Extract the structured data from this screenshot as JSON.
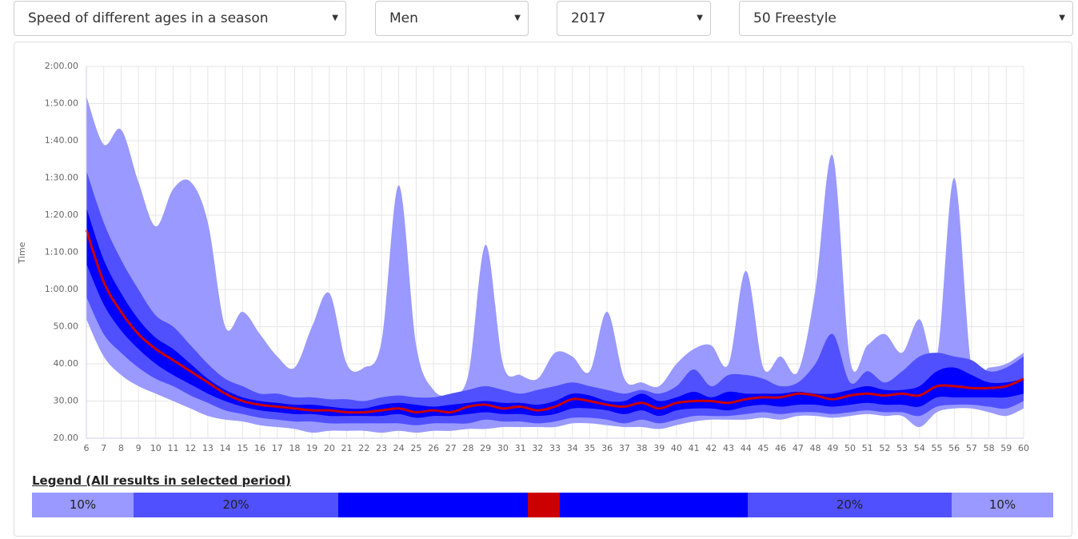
{
  "controls": [
    {
      "label": "Speed of different ages in a season"
    },
    {
      "label": "Men"
    },
    {
      "label": "2017"
    },
    {
      "label": "50 Freestyle"
    }
  ],
  "chart_data": {
    "type": "area",
    "y_label": "Time",
    "x": [
      6,
      7,
      8,
      9,
      10,
      11,
      12,
      13,
      14,
      15,
      16,
      17,
      18,
      19,
      20,
      21,
      22,
      23,
      24,
      25,
      26,
      27,
      28,
      29,
      30,
      31,
      32,
      33,
      34,
      35,
      36,
      37,
      38,
      39,
      40,
      41,
      42,
      43,
      44,
      45,
      46,
      47,
      48,
      49,
      50,
      51,
      52,
      53,
      54,
      55,
      56,
      57,
      58,
      59,
      60
    ],
    "xlim": [
      6,
      60
    ],
    "xticks": [
      6,
      7,
      8,
      9,
      10,
      11,
      12,
      13,
      14,
      15,
      16,
      17,
      18,
      19,
      20,
      21,
      22,
      23,
      24,
      25,
      26,
      27,
      28,
      29,
      30,
      31,
      32,
      33,
      34,
      35,
      36,
      37,
      38,
      39,
      40,
      41,
      42,
      43,
      44,
      45,
      46,
      47,
      48,
      49,
      50,
      51,
      52,
      53,
      54,
      55,
      56,
      57,
      58,
      59,
      60
    ],
    "ylim": [
      20,
      120
    ],
    "yticks": [
      {
        "value": 20,
        "label": "20.00"
      },
      {
        "value": 30,
        "label": "30.00"
      },
      {
        "value": 40,
        "label": "40.00"
      },
      {
        "value": 50,
        "label": "50.00"
      },
      {
        "value": 60,
        "label": "1:00.00"
      },
      {
        "value": 70,
        "label": "1:10.00"
      },
      {
        "value": 80,
        "label": "1:20.00"
      },
      {
        "value": 90,
        "label": "1:30.00"
      },
      {
        "value": 100,
        "label": "1:40.00"
      },
      {
        "value": 110,
        "label": "1:50.00"
      },
      {
        "value": 120,
        "label": "2:00.00"
      }
    ],
    "grid": true,
    "series": [
      {
        "color": "#9999ff",
        "values": [
          52,
          42,
          37,
          34,
          32,
          30,
          28,
          26,
          25,
          24.5,
          23.5,
          23,
          22.5,
          21.5,
          22,
          22,
          22,
          21.5,
          22,
          21.5,
          22,
          22,
          22.5,
          22.5,
          23,
          23,
          23,
          23,
          24,
          24,
          23.5,
          23,
          23,
          22.5,
          23.5,
          24.5,
          25,
          25,
          25,
          25.5,
          25,
          26,
          26,
          25.5,
          26,
          26.5,
          26,
          26,
          23,
          27,
          28,
          28,
          27,
          26,
          28
        ]
      },
      {
        "color": "#5050ff",
        "values": [
          58,
          48,
          43,
          39,
          36,
          34,
          31.5,
          29.5,
          27.5,
          26.5,
          25.5,
          25,
          24.5,
          24.5,
          24,
          24,
          24,
          24,
          24,
          23.5,
          24,
          24,
          24,
          25,
          24.5,
          24.5,
          24,
          24.5,
          25.5,
          25.5,
          25,
          24,
          25,
          24,
          25,
          26,
          26,
          26,
          26.5,
          27,
          26.5,
          27,
          27,
          26.5,
          27,
          27.5,
          27,
          27,
          26,
          28.5,
          29,
          29,
          28.5,
          28,
          30
        ]
      },
      {
        "color": "#0000ff",
        "values": [
          67,
          56,
          49,
          44,
          40,
          37,
          34.5,
          32,
          30,
          28.5,
          27.5,
          27,
          26.5,
          26.5,
          26,
          26,
          26,
          26,
          26.5,
          25.5,
          26,
          26,
          26.5,
          27,
          26.5,
          26.5,
          26,
          26.5,
          28,
          28,
          27.5,
          26.5,
          27.5,
          26,
          27.5,
          28,
          28,
          27.5,
          28.5,
          29,
          28.5,
          29,
          29,
          28.5,
          29,
          29.5,
          29,
          29,
          28.5,
          31,
          31,
          31,
          31,
          31,
          32
        ]
      },
      {
        "color": "#cc0000",
        "values": [
          76,
          62,
          54,
          48,
          44,
          41,
          38,
          35,
          32,
          30,
          29,
          28.5,
          28,
          27.5,
          27.5,
          27,
          27,
          27.5,
          28,
          27,
          27.5,
          27,
          28.5,
          29,
          28,
          28.5,
          27.5,
          28.5,
          30.5,
          30,
          29,
          28.5,
          29.5,
          28,
          29.5,
          30,
          30,
          29.5,
          30.5,
          31,
          31,
          32,
          31.5,
          30.5,
          31.5,
          32,
          31.5,
          32,
          31.5,
          34,
          34,
          33.5,
          33.5,
          34,
          36
        ]
      },
      {
        "color": "#0000ff",
        "values": [
          82,
          68,
          59,
          52,
          47,
          44,
          40,
          36,
          33,
          31,
          30,
          29.5,
          29,
          29,
          28.5,
          28,
          28,
          29,
          29.5,
          29,
          28.5,
          29,
          29.5,
          30,
          29.5,
          29.5,
          29,
          30,
          32,
          31.5,
          30,
          30,
          32,
          30,
          31,
          32.5,
          31,
          32.5,
          32,
          32,
          32,
          32.5,
          32,
          32,
          33,
          34,
          33,
          33,
          34,
          38,
          39,
          37,
          35,
          35,
          36
        ]
      },
      {
        "color": "#5050ff",
        "values": [
          92,
          78,
          68,
          60,
          53,
          50,
          45,
          40,
          36,
          34,
          32,
          32,
          31,
          31,
          30.5,
          30.5,
          30,
          31,
          31.5,
          31,
          31,
          32,
          33,
          34,
          33,
          32,
          33,
          34,
          35,
          34,
          33,
          32,
          33,
          32,
          34,
          38.5,
          34,
          37,
          37,
          36,
          34,
          35,
          40,
          48,
          35,
          38,
          35,
          38,
          42,
          43,
          42,
          41,
          38,
          39,
          42
        ]
      },
      {
        "color": "#9999ff",
        "values": [
          112,
          99,
          103,
          89,
          77,
          87,
          89,
          78,
          50,
          54,
          48,
          42,
          39,
          50,
          59,
          40,
          39,
          46,
          88,
          45,
          33,
          32,
          37,
          72,
          40,
          37,
          36,
          43,
          42,
          38,
          54,
          36,
          35,
          34,
          40,
          44,
          45,
          40,
          65,
          39,
          42,
          38,
          60,
          96,
          41,
          45,
          48,
          43,
          52,
          42,
          90,
          39,
          39,
          40,
          43
        ]
      }
    ],
    "legend": {
      "title": "Legend (All results in selected period)",
      "items": [
        {
          "label": "10%",
          "color": "#9999ff"
        },
        {
          "label": "20%",
          "color": "#5050ff"
        },
        {
          "color": "#0000ff"
        },
        {
          "color": "#cc0000"
        },
        {
          "color": "#0000ff"
        },
        {
          "label": "20%",
          "color": "#5050ff"
        },
        {
          "label": "10%",
          "color": "#9999ff"
        }
      ]
    }
  }
}
